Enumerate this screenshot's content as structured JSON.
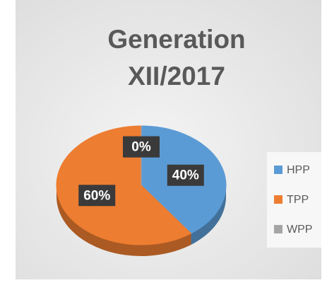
{
  "chart_data": {
    "type": "pie",
    "title": "Generation XII/2017",
    "categories": [
      "HPP",
      "TPP",
      "WPP"
    ],
    "values": [
      40,
      60,
      0
    ],
    "value_labels": [
      "40%",
      "60%",
      "0%"
    ],
    "colors": [
      "#5b9bd5",
      "#ed7d31",
      "#a5a5a5"
    ],
    "legend": "right"
  }
}
